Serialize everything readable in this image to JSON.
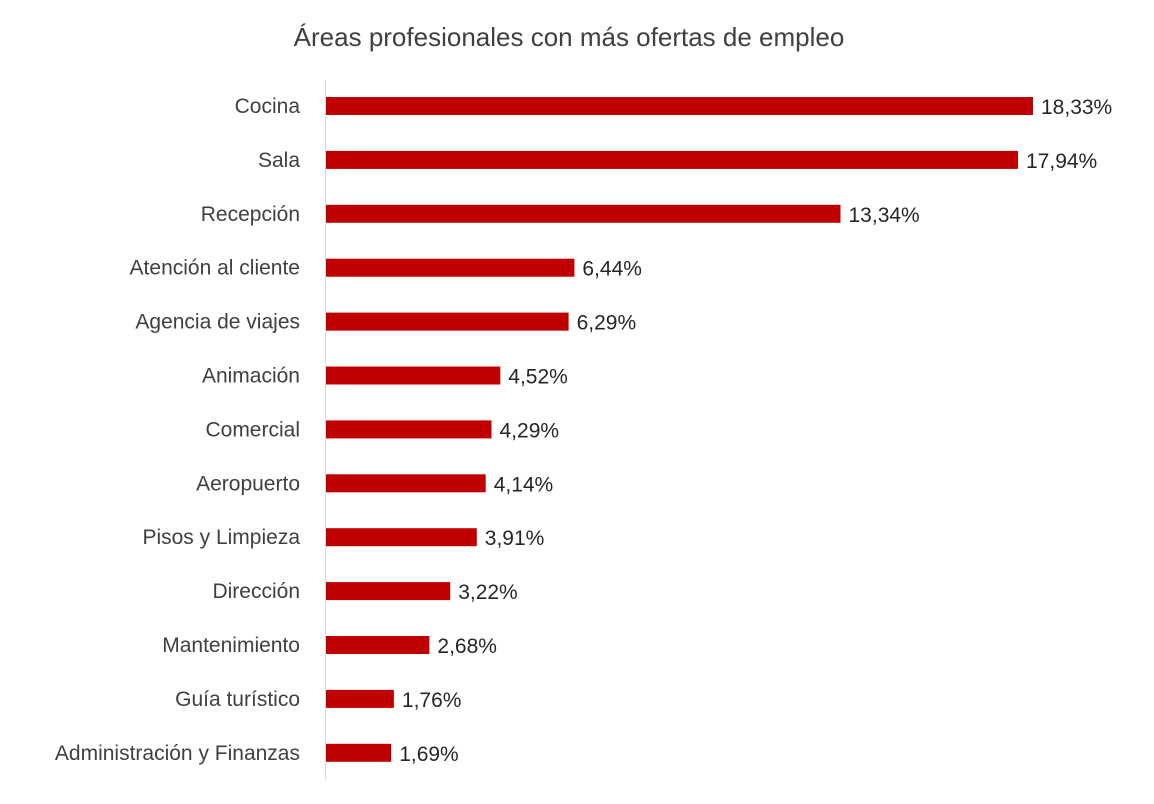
{
  "chart_data": {
    "type": "bar",
    "orientation": "horizontal",
    "title": "Áreas profesionales con más ofertas de empleo",
    "xlabel": "",
    "ylabel": "",
    "xlim": [
      0,
      18.33
    ],
    "grid": false,
    "legend": "none",
    "bar_color": "#c00000",
    "categories": [
      "Cocina",
      "Sala",
      "Recepción",
      "Atención al cliente",
      "Agencia de viajes",
      "Animación",
      "Comercial",
      "Aeropuerto",
      "Pisos y Limpieza",
      "Dirección",
      "Mantenimiento",
      "Guía turístico",
      "Administración y Finanzas"
    ],
    "values": [
      18.33,
      17.94,
      13.34,
      6.44,
      6.29,
      4.52,
      4.29,
      4.14,
      3.91,
      3.22,
      2.68,
      1.76,
      1.69
    ],
    "value_labels": [
      "18,33%",
      "17,94%",
      "13,34%",
      "6,44%",
      "6,29%",
      "4,52%",
      "4,29%",
      "4,14%",
      "3,91%",
      "3,22%",
      "2,68%",
      "1,76%",
      "1,69%"
    ]
  }
}
